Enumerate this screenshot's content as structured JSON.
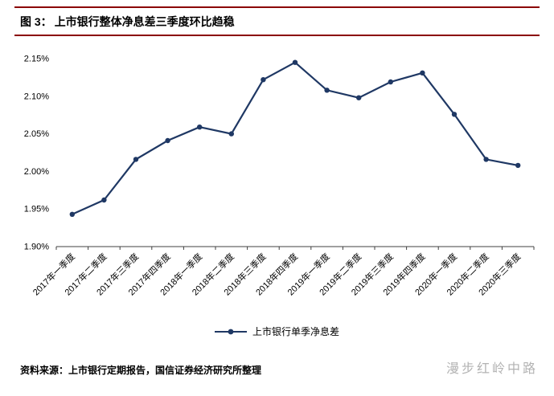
{
  "header": {
    "figure_label": "图 3：",
    "title": "上市银行整体净息差三季度环比趋稳"
  },
  "chart_data": {
    "type": "line",
    "title": "上市银行整体净息差三季度环比趋稳",
    "categories": [
      "2017年一季度",
      "2017年二季度",
      "2017年三季度",
      "2017年四季度",
      "2018年一季度",
      "2018年二季度",
      "2018年三季度",
      "2018年四季度",
      "2019年一季度",
      "2019年二季度",
      "2019年三季度",
      "2019年四季度",
      "2020年一季度",
      "2020年二季度",
      "2020年三季度"
    ],
    "series": [
      {
        "name": "上市银行单季净息差",
        "values": [
          1.943,
          1.962,
          2.016,
          2.041,
          2.059,
          2.05,
          2.122,
          2.145,
          2.108,
          2.098,
          2.119,
          2.131,
          2.076,
          2.016,
          2.008
        ]
      }
    ],
    "ylim": [
      1.9,
      2.15
    ],
    "ytick_step": 0.05,
    "yticks": [
      "1.90%",
      "1.95%",
      "2.00%",
      "2.05%",
      "2.10%",
      "2.15%"
    ],
    "grid": false,
    "legend_position": "bottom",
    "line_color": "#1F3864"
  },
  "footer": {
    "source": "资料来源：上市银行定期报告，国信证券经济研究所整理"
  },
  "watermark": {
    "text": "漫步红岭中路"
  },
  "colors": {
    "accent_rule": "#8B0000",
    "line": "#1F3864",
    "axis": "#404040",
    "watermark": "#B3B3B3"
  }
}
